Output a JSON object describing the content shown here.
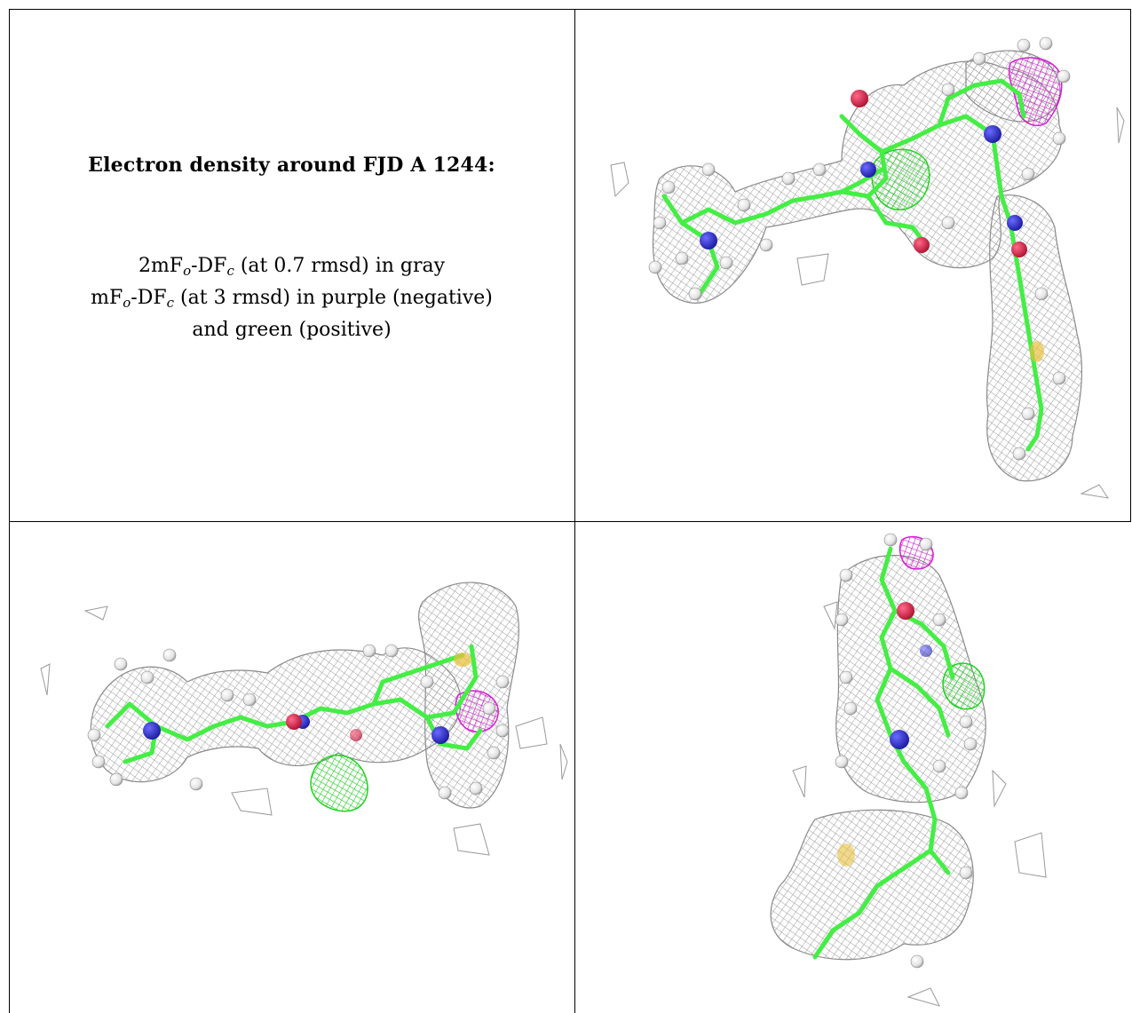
{
  "caption": {
    "title": "Electron density around FJD A 1244:",
    "line1": {
      "prefix": "2mF",
      "sub1": "o",
      "mid": "-DF",
      "sub2": "c",
      "suffix": " (at 0.7 rmsd) in gray"
    },
    "line2": {
      "prefix": "mF",
      "sub1": "o",
      "mid": "-DF",
      "sub2": "c",
      "suffix": " (at 3 rmsd) in purple (negative)"
    },
    "line3": "and green (positive)"
  },
  "colors": {
    "mesh_gray": "#9a9a9a",
    "positive_green": "#22dd22",
    "negative_purple": "#dd22dd",
    "bond_green": "#44ee44",
    "nitrogen_blue": "#2a2ad0",
    "oxygen_red": "#e0204a",
    "sulfur_yellow": "#e8c040",
    "hydrogen_white": "#f4f4f4"
  },
  "panels": [
    {
      "view": "top-right"
    },
    {
      "view": "bottom-left"
    },
    {
      "view": "bottom-right"
    }
  ]
}
